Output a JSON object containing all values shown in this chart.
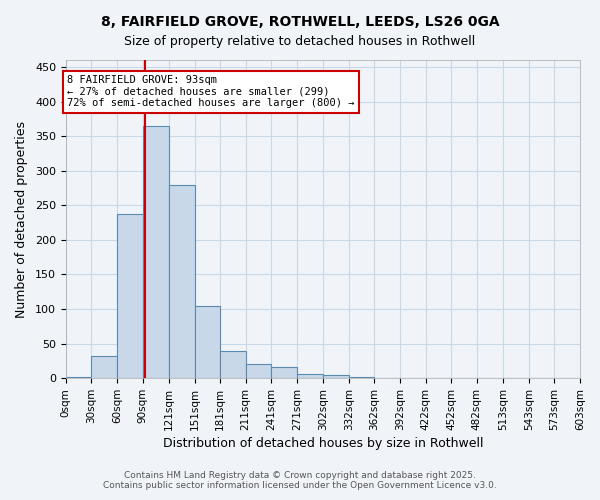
{
  "title_line1": "8, FAIRFIELD GROVE, ROTHWELL, LEEDS, LS26 0GA",
  "title_line2": "Size of property relative to detached houses in Rothwell",
  "xlabel": "Distribution of detached houses by size in Rothwell",
  "ylabel": "Number of detached properties",
  "footer_line1": "Contains HM Land Registry data © Crown copyright and database right 2025.",
  "footer_line2": "Contains public sector information licensed under the Open Government Licence v3.0.",
  "bin_labels": [
    "0sqm",
    "30sqm",
    "60sqm",
    "90sqm",
    "121sqm",
    "151sqm",
    "181sqm",
    "211sqm",
    "241sqm",
    "271sqm",
    "302sqm",
    "332sqm",
    "362sqm",
    "392sqm",
    "422sqm",
    "452sqm",
    "482sqm",
    "513sqm",
    "543sqm",
    "573sqm",
    "603sqm"
  ],
  "bin_edges": [
    0,
    30,
    60,
    90,
    121,
    151,
    181,
    211,
    241,
    271,
    302,
    332,
    362,
    392,
    422,
    452,
    482,
    513,
    543,
    573,
    603
  ],
  "counts": [
    2,
    32,
    237,
    365,
    280,
    105,
    40,
    20,
    16,
    6,
    4,
    2,
    1,
    1,
    0,
    0,
    1,
    0,
    0,
    0
  ],
  "bar_color": "#c8d8e8",
  "bar_edge_color": "#5a8ab0",
  "red_line_x": 93,
  "annotation_text_line1": "8 FAIRFIELD GROVE: 93sqm",
  "annotation_text_line2": "← 27% of detached houses are smaller (299)",
  "annotation_text_line3": "72% of semi-detached houses are larger (800) →",
  "annotation_box_color": "#ffffff",
  "annotation_box_edge": "#cc0000",
  "red_line_color": "#cc0000",
  "grid_color": "#c8d8e8",
  "ylim": [
    0,
    460
  ],
  "yticks": [
    0,
    50,
    100,
    150,
    200,
    250,
    300,
    350,
    400,
    450
  ],
  "background_color": "#f0f4f8"
}
